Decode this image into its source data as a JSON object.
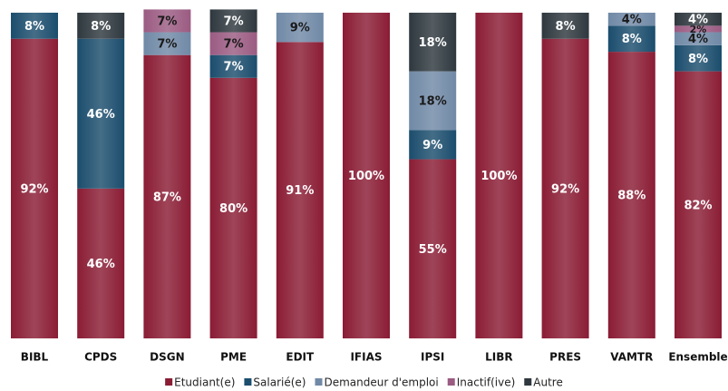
{
  "chart_data": {
    "type": "stacked_bar",
    "categories": [
      "BIBL",
      "CPDS",
      "DSGN",
      "PME",
      "EDIT",
      "IFIAS",
      "IPSI",
      "LIBR",
      "PRES",
      "VAMTR",
      "Ensemble"
    ],
    "ylim": [
      0,
      100
    ],
    "series": [
      {
        "name": "Etudiant(e)",
        "color": "#8a1c34",
        "values": [
          92,
          46,
          87,
          80,
          91,
          100,
          55,
          100,
          92,
          88,
          82
        ],
        "value_labels": [
          "92%",
          "46%",
          "87%",
          "80%",
          "91%",
          "100%",
          "55%",
          "100%",
          "92%",
          "88%",
          "82%"
        ]
      },
      {
        "name": "Salarié(e)",
        "color": "#1b4d6d",
        "values": [
          8,
          46,
          null,
          7,
          null,
          null,
          9,
          null,
          null,
          8,
          8
        ],
        "value_labels": [
          "8%",
          "46%",
          null,
          "7%",
          null,
          null,
          "9%",
          null,
          null,
          "8%",
          "8%"
        ]
      },
      {
        "name": "Demandeur d'emploi",
        "color": "#7089a6",
        "values": [
          null,
          null,
          7,
          null,
          9,
          null,
          18,
          null,
          null,
          4,
          4
        ],
        "value_labels": [
          null,
          null,
          "7%",
          null,
          "9%",
          null,
          "18%",
          null,
          null,
          "4%",
          "4%"
        ]
      },
      {
        "name": "Inactif(ive)",
        "color": "#9b5b82",
        "values": [
          null,
          null,
          7,
          7,
          null,
          null,
          null,
          null,
          null,
          null,
          2
        ],
        "value_labels": [
          null,
          null,
          "7%",
          "7%",
          null,
          null,
          null,
          null,
          null,
          null,
          "2%"
        ]
      },
      {
        "name": "Autre",
        "color": "#2e383e",
        "values": [
          null,
          8,
          null,
          7,
          null,
          null,
          18,
          null,
          8,
          null,
          4
        ],
        "value_labels": [
          null,
          "8%",
          null,
          "7%",
          null,
          null,
          "18%",
          null,
          "8%",
          null,
          "4%"
        ]
      }
    ]
  }
}
